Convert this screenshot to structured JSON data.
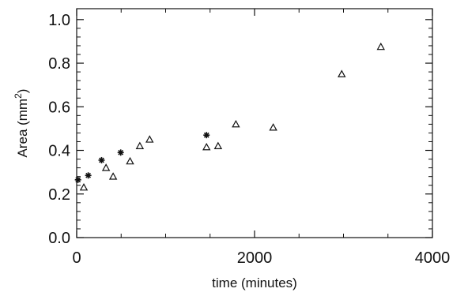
{
  "chart_data": {
    "type": "scatter",
    "title": "",
    "xlabel": "time (minutes)",
    "ylabel_main": "Area (mm",
    "ylabel_sup": "2",
    "ylabel_close": ")",
    "xlim": [
      0,
      4000
    ],
    "ylim": [
      0.0,
      1.05
    ],
    "grid": false,
    "x_ticks": [
      0,
      2000,
      4000
    ],
    "x_tick_labels": [
      "0",
      "2000",
      "4000"
    ],
    "y_ticks": [
      0.0,
      0.2,
      0.4,
      0.6,
      0.8,
      1.0
    ],
    "y_tick_labels": [
      "0.0",
      "0.2",
      "0.4",
      "0.6",
      "0.8",
      "1.0"
    ],
    "series": [
      {
        "marker": "asterisk",
        "points": [
          {
            "x": 15,
            "y": 0.265
          },
          {
            "x": 130,
            "y": 0.285
          },
          {
            "x": 280,
            "y": 0.355
          },
          {
            "x": 495,
            "y": 0.39
          },
          {
            "x": 1460,
            "y": 0.47
          }
        ]
      },
      {
        "marker": "triangle",
        "points": [
          {
            "x": 80,
            "y": 0.23
          },
          {
            "x": 330,
            "y": 0.32
          },
          {
            "x": 410,
            "y": 0.28
          },
          {
            "x": 600,
            "y": 0.35
          },
          {
            "x": 710,
            "y": 0.42
          },
          {
            "x": 820,
            "y": 0.45
          },
          {
            "x": 1460,
            "y": 0.415
          },
          {
            "x": 1590,
            "y": 0.42
          },
          {
            "x": 1790,
            "y": 0.52
          },
          {
            "x": 2210,
            "y": 0.505
          },
          {
            "x": 2980,
            "y": 0.75
          },
          {
            "x": 3420,
            "y": 0.875
          }
        ]
      }
    ]
  }
}
